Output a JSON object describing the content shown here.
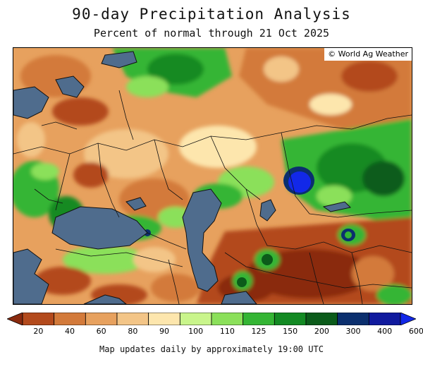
{
  "title": "90-day Precipitation Analysis",
  "subtitle": "Percent of normal through 21 Oct 2025",
  "copyright": "© World Ag Weather",
  "footer": "Map updates daily by approximately 19:00 UTC",
  "legend": {
    "labels": [
      "20",
      "40",
      "60",
      "80",
      "90",
      "100",
      "110",
      "125",
      "150",
      "200",
      "300",
      "400",
      "600"
    ],
    "colors": [
      "#8a2a0e",
      "#b34a1c",
      "#d37a3a",
      "#e7a15e",
      "#f3c587",
      "#fde6ad",
      "#c9f58b",
      "#8be05a",
      "#34b534",
      "#138a23",
      "#0b5b1a",
      "#0b2f6e",
      "#101a9e",
      "#1228e8"
    ]
  },
  "map": {
    "water_color": "#4f6c8d",
    "border_color": "#111111"
  }
}
